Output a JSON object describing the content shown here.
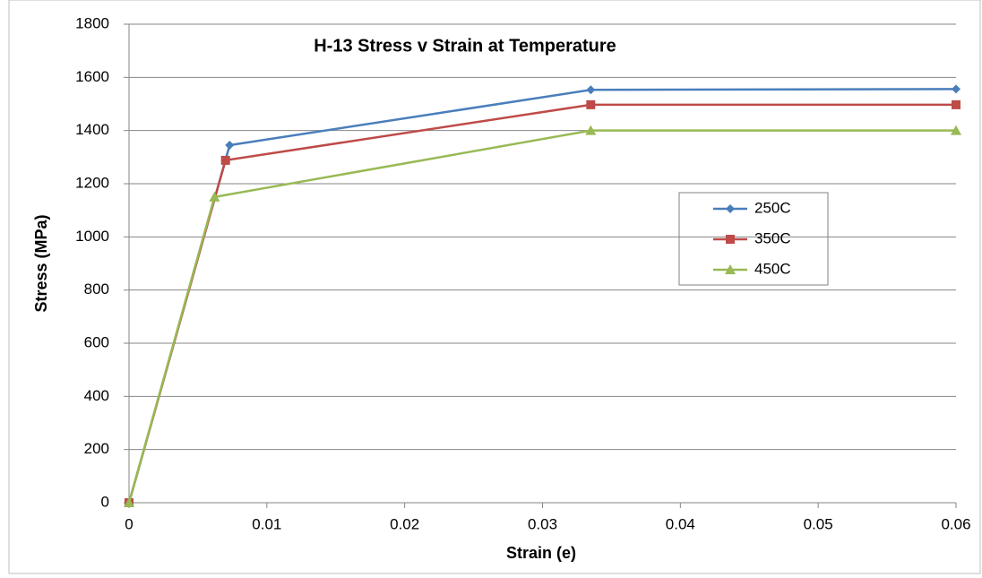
{
  "chart_data": {
    "type": "scatter",
    "title": "H-13  Stress v Strain at Temperature",
    "x_label": "Strain (e)",
    "y_label": "Stress (MPa)",
    "xlim": [
      0,
      0.06
    ],
    "xticks": [
      0,
      0.01,
      0.02,
      0.03,
      0.04,
      0.05,
      0.06
    ],
    "ylim": [
      0,
      1800
    ],
    "yticks": [
      0,
      200,
      400,
      600,
      800,
      1000,
      1200,
      1400,
      1600,
      1800
    ],
    "grid": true,
    "legend": "right",
    "series": [
      {
        "name": "250C",
        "color": "#4a7ebb",
        "marker": "diamond",
        "x": [
          0,
          0.0073,
          0.0335,
          0.06
        ],
        "values": [
          0,
          1345,
          1553,
          1556
        ]
      },
      {
        "name": "350C",
        "color": "#be4b48",
        "marker": "square",
        "x": [
          0,
          0.007,
          0.0335,
          0.06
        ],
        "values": [
          0,
          1288,
          1497,
          1497
        ]
      },
      {
        "name": "450C",
        "color": "#98b954",
        "marker": "triangle",
        "x": [
          0,
          0.0062,
          0.0335,
          0.06
        ],
        "values": [
          0,
          1150,
          1400,
          1400
        ]
      }
    ]
  }
}
